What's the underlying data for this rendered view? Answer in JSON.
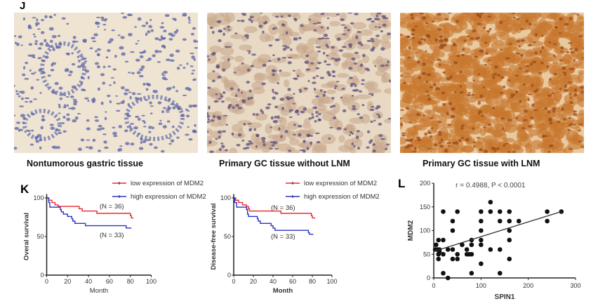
{
  "panel_j": {
    "letter": "J",
    "images": [
      {
        "caption": "Nontumorous gastric tissue",
        "stain": "negative",
        "background": "#efe4d2",
        "nuclei": "#5b63a8",
        "cytoplasm": "#efe4d2"
      },
      {
        "caption": "Primary GC tissue without LNM",
        "stain": "weak",
        "background": "#e8d9c4",
        "nuclei": "#5e4d7c",
        "cytoplasm": "#c8a98e"
      },
      {
        "caption": "Primary GC tissue with  LNM",
        "stain": "strong",
        "background": "#e9c9a0",
        "nuclei": "#9a4a1a",
        "cytoplasm": "#c8782f"
      }
    ]
  },
  "panel_k": {
    "letter": "K"
  },
  "panel_l": {
    "letter": "L"
  },
  "chart_data": [
    {
      "type": "line",
      "subtype": "kaplan-meier",
      "xlabel": "Month",
      "ylabel": "Overal survival",
      "xlim": [
        0,
        100
      ],
      "ylim": [
        0,
        100
      ],
      "xticks": [
        "0",
        "20",
        "40",
        "60",
        "80",
        "100"
      ],
      "yticks": [
        "0",
        "50",
        "100"
      ],
      "legend": "top-right",
      "series": [
        {
          "name": "low expression of MDM2",
          "color": "#e8282b",
          "n_label": "(N = 36)",
          "steps": [
            [
              0,
              100
            ],
            [
              2,
              97
            ],
            [
              5,
              94
            ],
            [
              8,
              91
            ],
            [
              11,
              89
            ],
            [
              31,
              86
            ],
            [
              34,
              83
            ],
            [
              48,
              80
            ],
            [
              80,
              77
            ],
            [
              81,
              74
            ],
            [
              83,
              74
            ]
          ]
        },
        {
          "name": "high expression of MDM2",
          "color": "#2c32c8",
          "n_label": "(N = 33)",
          "steps": [
            [
              0,
              100
            ],
            [
              2,
              94
            ],
            [
              3,
              88
            ],
            [
              13,
              85
            ],
            [
              14,
              82
            ],
            [
              16,
              79
            ],
            [
              20,
              76
            ],
            [
              24,
              73
            ],
            [
              25,
              70
            ],
            [
              27,
              67
            ],
            [
              37,
              64
            ],
            [
              76,
              61
            ],
            [
              81,
              61
            ]
          ]
        }
      ]
    },
    {
      "type": "line",
      "subtype": "kaplan-meier",
      "xlabel": "Month",
      "ylabel": "Disease-free survival",
      "xlim": [
        0,
        100
      ],
      "ylim": [
        0,
        100
      ],
      "xticks": [
        "0",
        "20",
        "40",
        "60",
        "80",
        "100"
      ],
      "yticks": [
        "0",
        "50",
        "100"
      ],
      "legend": "top-right",
      "series": [
        {
          "name": "low expression of MDM2",
          "color": "#e8282b",
          "n_label": "(N = 36)",
          "steps": [
            [
              0,
              100
            ],
            [
              2,
              97
            ],
            [
              5,
              94
            ],
            [
              9,
              91
            ],
            [
              13,
              89
            ],
            [
              15,
              86
            ],
            [
              16,
              83
            ],
            [
              48,
              80
            ],
            [
              79,
              77
            ],
            [
              80,
              74
            ],
            [
              83,
              74
            ]
          ]
        },
        {
          "name": "high expression of MDM2",
          "color": "#2c32c8",
          "n_label": "(N = 33)",
          "steps": [
            [
              0,
              100
            ],
            [
              1,
              94
            ],
            [
              3,
              88
            ],
            [
              13,
              85
            ],
            [
              14,
              79
            ],
            [
              15,
              76
            ],
            [
              24,
              73
            ],
            [
              25,
              70
            ],
            [
              27,
              67
            ],
            [
              38,
              64
            ],
            [
              40,
              61
            ],
            [
              42,
              58
            ],
            [
              76,
              55
            ],
            [
              77,
              53
            ],
            [
              81,
              53
            ]
          ]
        }
      ]
    },
    {
      "type": "scatter",
      "title": "r = 0.4988, P < 0.0001",
      "xlabel": "SPIN1",
      "ylabel": "MDM2",
      "xlim": [
        0,
        300
      ],
      "ylim": [
        0,
        200
      ],
      "xticks": [
        "0",
        "100",
        "200",
        "300"
      ],
      "yticks": [
        "0",
        "50",
        "100",
        "150",
        "200"
      ],
      "fit_line": [
        [
          0,
          56
        ],
        [
          270,
          140
        ]
      ],
      "points": [
        [
          5,
          70
        ],
        [
          3,
          60
        ],
        [
          8,
          60
        ],
        [
          12,
          60
        ],
        [
          12,
          55
        ],
        [
          10,
          50
        ],
        [
          10,
          40
        ],
        [
          10,
          80
        ],
        [
          20,
          80
        ],
        [
          20,
          50
        ],
        [
          20,
          140
        ],
        [
          20,
          10
        ],
        [
          30,
          0
        ],
        [
          30,
          60
        ],
        [
          40,
          120
        ],
        [
          40,
          100
        ],
        [
          40,
          60
        ],
        [
          40,
          40
        ],
        [
          50,
          140
        ],
        [
          50,
          50
        ],
        [
          50,
          40
        ],
        [
          60,
          70
        ],
        [
          70,
          60
        ],
        [
          70,
          50
        ],
        [
          75,
          50
        ],
        [
          80,
          80
        ],
        [
          80,
          70
        ],
        [
          80,
          50
        ],
        [
          80,
          10
        ],
        [
          100,
          140
        ],
        [
          100,
          120
        ],
        [
          100,
          100
        ],
        [
          100,
          80
        ],
        [
          100,
          70
        ],
        [
          100,
          30
        ],
        [
          120,
          160
        ],
        [
          120,
          140
        ],
        [
          120,
          60
        ],
        [
          140,
          140
        ],
        [
          140,
          120
        ],
        [
          140,
          60
        ],
        [
          140,
          10
        ],
        [
          160,
          140
        ],
        [
          160,
          120
        ],
        [
          160,
          100
        ],
        [
          160,
          80
        ],
        [
          160,
          40
        ],
        [
          180,
          120
        ],
        [
          240,
          140
        ],
        [
          240,
          120
        ],
        [
          270,
          140
        ]
      ]
    }
  ]
}
